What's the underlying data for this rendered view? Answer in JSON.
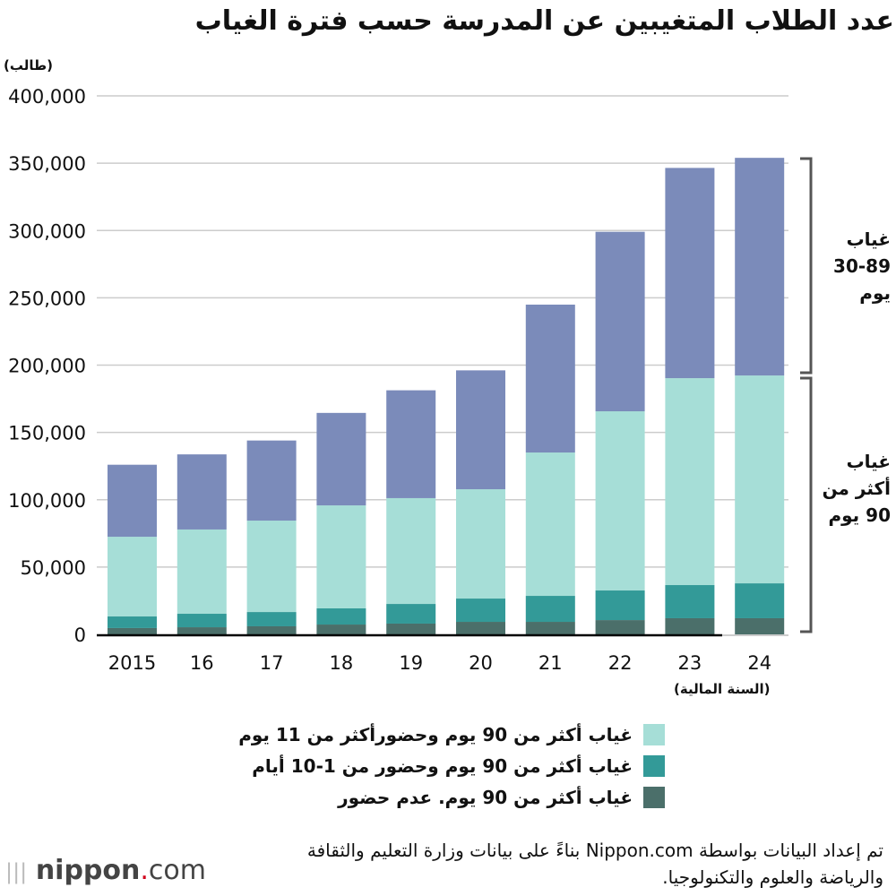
{
  "title": "عدد الطلاب المتغيبين عن المدرسة حسب فترة الغياب",
  "colors": {
    "dark": "#4b6f6a",
    "teal": "#339a98",
    "light": "#a6ded7",
    "purple": "#7b8bba"
  },
  "chart_data": {
    "type": "bar",
    "stacked": true,
    "title": "عدد الطلاب المتغيبين عن المدرسة حسب فترة الغياب",
    "ylabel": "(طالب)",
    "xlabel": "(السنة المالية)",
    "ylim": [
      0,
      400000
    ],
    "yticks": [
      0,
      50000,
      100000,
      150000,
      200000,
      250000,
      300000,
      350000,
      400000
    ],
    "ytick_labels": [
      "0",
      "50,000",
      "100,000",
      "150,000",
      "200,000",
      "250,000",
      "300,000",
      "350,000",
      "400,000"
    ],
    "grid": true,
    "legend_position": "bottom",
    "categories": [
      "2015",
      "16",
      "17",
      "18",
      "19",
      "20",
      "21",
      "22",
      "23",
      "24"
    ],
    "series": [
      {
        "name": "غياب أكثر من 90 يوم. عدم حضور",
        "color": "#4b6f6a",
        "values": [
          4700,
          5300,
          6000,
          7300,
          8000,
          9300,
          9300,
          10600,
          12000,
          12000
        ]
      },
      {
        "name": "غياب أكثر من 90 يوم وحضور من 1-10 أيام",
        "color": "#339a98",
        "values": [
          8600,
          10000,
          10600,
          12000,
          14600,
          17300,
          19300,
          22000,
          24600,
          25900
        ]
      },
      {
        "name": "غياب أكثر من 90 يوم وحضورأكثر من 11 يوم",
        "color": "#a6ded7",
        "values": [
          59200,
          62600,
          67900,
          76500,
          78600,
          81200,
          106500,
          133100,
          153700,
          154400
        ]
      },
      {
        "name": "غياب 30-89 يوم",
        "color": "#7b8bba",
        "values": [
          53500,
          55800,
          59500,
          68700,
          80100,
          88300,
          109840,
          133348,
          156182,
          161670
        ]
      }
    ],
    "brackets": [
      {
        "label_lines": [
          "غياب",
          "30-89",
          "يوم"
        ]
      },
      {
        "label_lines": [
          "غياب",
          "أكثر من",
          "90 يوم"
        ]
      }
    ]
  },
  "source": "تم إعداد البيانات بواسطة Nippon.com بناءً على بيانات وزارة التعليم والثقافة والرياضة والعلوم والتكنولوجيا.",
  "logo": {
    "name": "nippon",
    ".com": ".com"
  }
}
